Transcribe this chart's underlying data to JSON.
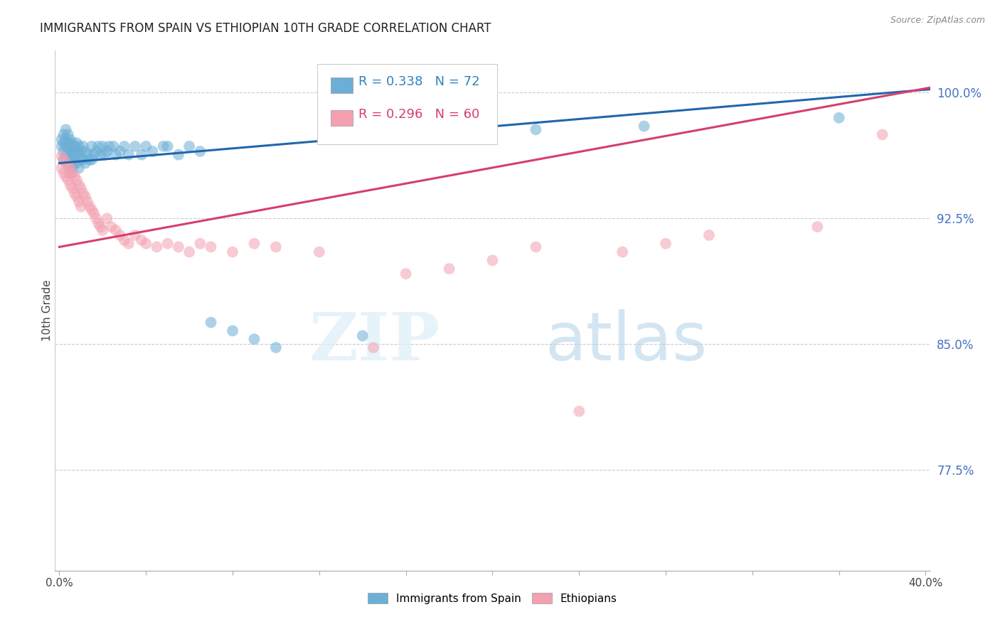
{
  "title": "IMMIGRANTS FROM SPAIN VS ETHIOPIAN 10TH GRADE CORRELATION CHART",
  "source": "Source: ZipAtlas.com",
  "ylabel": "10th Grade",
  "ytick_labels": [
    "100.0%",
    "92.5%",
    "85.0%",
    "77.5%"
  ],
  "ytick_values": [
    1.0,
    0.925,
    0.85,
    0.775
  ],
  "ymin": 0.715,
  "ymax": 1.025,
  "xmin": -0.002,
  "xmax": 0.402,
  "blue_R": 0.338,
  "blue_N": 72,
  "pink_R": 0.296,
  "pink_N": 60,
  "legend_label_blue": "Immigrants from Spain",
  "legend_label_pink": "Ethiopians",
  "blue_color": "#6baed6",
  "pink_color": "#f4a0b0",
  "blue_line_color": "#2166ac",
  "pink_line_color": "#d63e6e",
  "watermark_zip": "ZIP",
  "watermark_atlas": "atlas",
  "blue_trend_x0": 0.0,
  "blue_trend_x1": 0.402,
  "blue_trend_y0": 0.958,
  "blue_trend_y1": 1.002,
  "pink_trend_x0": 0.0,
  "pink_trend_x1": 0.402,
  "pink_trend_y0": 0.908,
  "pink_trend_y1": 1.003,
  "blue_scatter_x": [
    0.001,
    0.001,
    0.002,
    0.002,
    0.002,
    0.002,
    0.003,
    0.003,
    0.003,
    0.003,
    0.004,
    0.004,
    0.004,
    0.004,
    0.005,
    0.005,
    0.005,
    0.005,
    0.005,
    0.006,
    0.006,
    0.006,
    0.006,
    0.007,
    0.007,
    0.007,
    0.008,
    0.008,
    0.008,
    0.009,
    0.009,
    0.009,
    0.01,
    0.01,
    0.011,
    0.011,
    0.012,
    0.012,
    0.013,
    0.014,
    0.015,
    0.015,
    0.016,
    0.017,
    0.018,
    0.019,
    0.02,
    0.021,
    0.022,
    0.023,
    0.025,
    0.026,
    0.028,
    0.03,
    0.032,
    0.035,
    0.038,
    0.04,
    0.043,
    0.048,
    0.05,
    0.055,
    0.06,
    0.065,
    0.07,
    0.08,
    0.09,
    0.1,
    0.14,
    0.22,
    0.27,
    0.36
  ],
  "blue_scatter_y": [
    0.972,
    0.968,
    0.975,
    0.97,
    0.965,
    0.96,
    0.978,
    0.972,
    0.968,
    0.962,
    0.975,
    0.97,
    0.965,
    0.958,
    0.972,
    0.968,
    0.963,
    0.958,
    0.952,
    0.97,
    0.965,
    0.96,
    0.955,
    0.968,
    0.963,
    0.958,
    0.97,
    0.965,
    0.958,
    0.968,
    0.963,
    0.955,
    0.965,
    0.96,
    0.968,
    0.96,
    0.965,
    0.958,
    0.963,
    0.96,
    0.968,
    0.96,
    0.963,
    0.965,
    0.968,
    0.963,
    0.968,
    0.963,
    0.965,
    0.968,
    0.968,
    0.963,
    0.965,
    0.968,
    0.963,
    0.968,
    0.963,
    0.968,
    0.965,
    0.968,
    0.968,
    0.963,
    0.968,
    0.965,
    0.863,
    0.858,
    0.853,
    0.848,
    0.855,
    0.978,
    0.98,
    0.985
  ],
  "pink_scatter_x": [
    0.001,
    0.001,
    0.002,
    0.002,
    0.003,
    0.003,
    0.004,
    0.004,
    0.005,
    0.005,
    0.006,
    0.006,
    0.007,
    0.007,
    0.008,
    0.008,
    0.009,
    0.009,
    0.01,
    0.01,
    0.011,
    0.012,
    0.013,
    0.014,
    0.015,
    0.016,
    0.017,
    0.018,
    0.019,
    0.02,
    0.022,
    0.024,
    0.026,
    0.028,
    0.03,
    0.032,
    0.035,
    0.038,
    0.04,
    0.045,
    0.05,
    0.055,
    0.06,
    0.065,
    0.07,
    0.08,
    0.09,
    0.1,
    0.12,
    0.145,
    0.16,
    0.18,
    0.2,
    0.22,
    0.24,
    0.26,
    0.28,
    0.3,
    0.35,
    0.38
  ],
  "pink_scatter_y": [
    0.962,
    0.955,
    0.96,
    0.952,
    0.958,
    0.95,
    0.956,
    0.948,
    0.955,
    0.945,
    0.952,
    0.943,
    0.95,
    0.94,
    0.948,
    0.938,
    0.945,
    0.935,
    0.943,
    0.932,
    0.94,
    0.938,
    0.935,
    0.932,
    0.93,
    0.928,
    0.925,
    0.922,
    0.92,
    0.918,
    0.925,
    0.92,
    0.918,
    0.915,
    0.912,
    0.91,
    0.915,
    0.912,
    0.91,
    0.908,
    0.91,
    0.908,
    0.905,
    0.91,
    0.908,
    0.905,
    0.91,
    0.908,
    0.905,
    0.848,
    0.892,
    0.895,
    0.9,
    0.908,
    0.81,
    0.905,
    0.91,
    0.915,
    0.92,
    0.975
  ]
}
